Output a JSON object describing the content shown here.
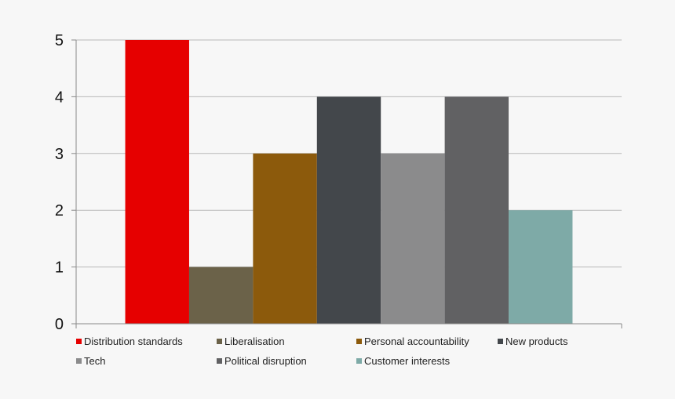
{
  "chart_data": {
    "type": "bar",
    "title": "",
    "xlabel": "",
    "ylabel": "",
    "ylim": [
      0,
      5
    ],
    "yticks": [
      0,
      1,
      2,
      3,
      4,
      5
    ],
    "grid": true,
    "legend_position": "bottom",
    "series": [
      {
        "name": "Distribution standards",
        "value": 5,
        "color": "#e60000"
      },
      {
        "name": "Liberalisation",
        "value": 1,
        "color": "#6b6249"
      },
      {
        "name": "Personal accountability",
        "value": 3,
        "color": "#8c5a0c"
      },
      {
        "name": "New products",
        "value": 4,
        "color": "#43474b"
      },
      {
        "name": "Tech",
        "value": 3,
        "color": "#8b8b8c"
      },
      {
        "name": "Political disruption",
        "value": 4,
        "color": "#616163"
      },
      {
        "name": "Customer interests",
        "value": 2,
        "color": "#7eaaa7"
      }
    ]
  }
}
